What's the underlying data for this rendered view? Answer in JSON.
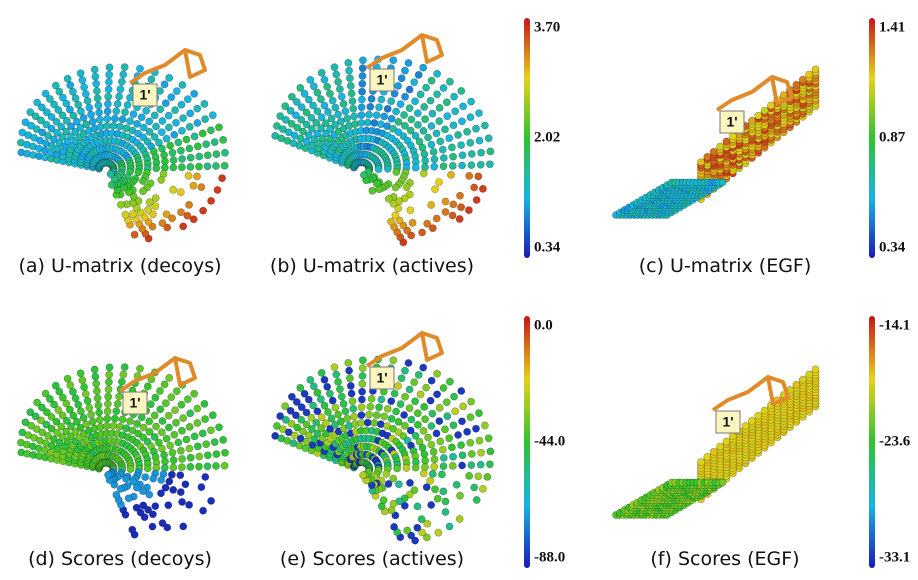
{
  "panels": [
    {
      "caption": "(a) U-matrix (decoys)",
      "marker": "1'"
    },
    {
      "caption": "(b) U-matrix (actives)",
      "marker": "1'"
    },
    {
      "caption": "(c) U-matrix (EGF)",
      "marker": "1'"
    },
    {
      "caption": "(d) Scores (decoys)",
      "marker": "1'"
    },
    {
      "caption": "(e) Scores (actives)",
      "marker": "1'"
    },
    {
      "caption": "(f) Scores (EGF)",
      "marker": "1'"
    }
  ],
  "colorbars": [
    {
      "ticks": [
        "3.70",
        "2.02",
        "0.34"
      ]
    },
    {
      "ticks": [
        "1.41",
        "0.87",
        "0.34"
      ]
    },
    {
      "ticks": [
        "0.0",
        "-44.0",
        "-88.0"
      ]
    },
    {
      "ticks": [
        "-14.1",
        "-23.6",
        "-33.1"
      ]
    }
  ]
}
